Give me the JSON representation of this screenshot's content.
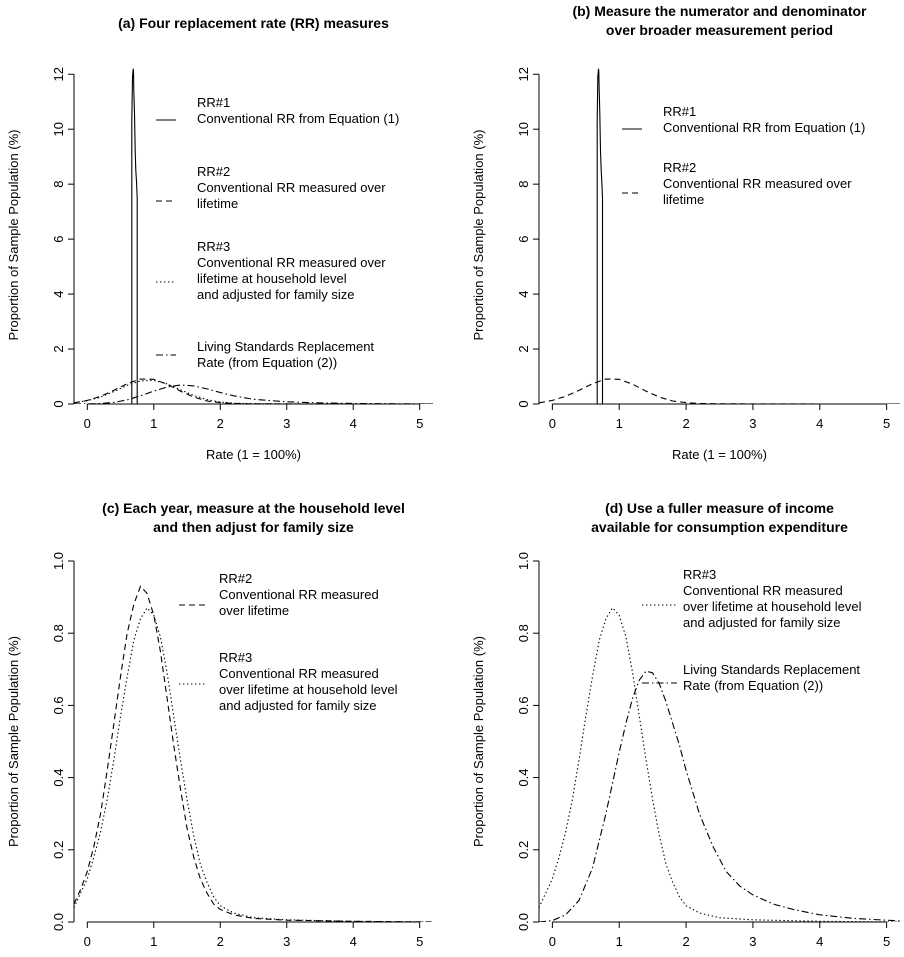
{
  "chart_data": [
    {
      "type": "line",
      "panel": "a",
      "title_lines": [
        "(a) Four replacement rate (RR) measures"
      ],
      "xlabel": "Rate (1 = 100%)",
      "ylabel": "Proportion of Sample Population (%)",
      "xlim": [
        -0.2,
        5.2
      ],
      "ylim": [
        0,
        12.3
      ],
      "xticks": [
        "0",
        "1",
        "2",
        "3",
        "4",
        "5"
      ],
      "yticks": [
        "0",
        "2",
        "4",
        "6",
        "8",
        "10",
        "12"
      ],
      "legend": [
        {
          "lines": [
            "RR#1",
            "Conventional RR from Equation (1)"
          ],
          "style": "solid"
        },
        {
          "lines": [
            "RR#2",
            "Conventional RR measured over",
            "lifetime"
          ],
          "style": "dashed"
        },
        {
          "lines": [
            "RR#3",
            "Conventional RR measured over",
            "lifetime at household level",
            "and adjusted for family size"
          ],
          "style": "dotted"
        },
        {
          "lines": [
            "Living Standards Replacement",
            "Rate (from Equation (2))"
          ],
          "style": "dashdot"
        }
      ],
      "series": [
        {
          "style": "solid",
          "x": [
            0.67,
            0.67,
            0.68,
            0.69,
            0.695,
            0.7,
            0.71,
            0.72,
            0.73,
            0.74,
            0.75,
            0.75,
            5.2
          ],
          "y": [
            0,
            10.3,
            11.9,
            12.2,
            12.1,
            11.4,
            10.6,
            9.2,
            8.5,
            8.1,
            7.5,
            0,
            0
          ]
        },
        {
          "style": "dashed",
          "x": [
            -0.2,
            0,
            0.2,
            0.4,
            0.6,
            0.8,
            1.0,
            1.2,
            1.4,
            1.6,
            1.8,
            2.0,
            2.2,
            2.5,
            3,
            4,
            5.2
          ],
          "y": [
            0.04,
            0.13,
            0.28,
            0.5,
            0.74,
            0.91,
            0.9,
            0.72,
            0.47,
            0.25,
            0.11,
            0.05,
            0.02,
            0.008,
            0.003,
            0.001,
            0
          ]
        },
        {
          "style": "dotted",
          "x": [
            -0.2,
            0,
            0.2,
            0.4,
            0.6,
            0.8,
            1.0,
            1.2,
            1.4,
            1.6,
            1.8,
            2.0,
            2.2,
            2.5,
            3,
            4,
            5.2
          ],
          "y": [
            0.05,
            0.12,
            0.25,
            0.45,
            0.68,
            0.84,
            0.86,
            0.73,
            0.52,
            0.31,
            0.16,
            0.07,
            0.03,
            0.012,
            0.004,
            0.001,
            0
          ]
        },
        {
          "style": "dashdot",
          "x": [
            -0.2,
            0,
            0.2,
            0.4,
            0.6,
            0.8,
            1.0,
            1.2,
            1.4,
            1.6,
            1.8,
            2.0,
            2.2,
            2.5,
            3,
            3.5,
            4,
            4.5,
            5,
            5.2
          ],
          "y": [
            0,
            0.004,
            0.02,
            0.06,
            0.15,
            0.3,
            0.47,
            0.62,
            0.69,
            0.66,
            0.55,
            0.42,
            0.3,
            0.17,
            0.08,
            0.04,
            0.02,
            0.01,
            0.005,
            0.003
          ]
        }
      ]
    },
    {
      "type": "line",
      "panel": "b",
      "title_lines": [
        "(b) Measure the numerator and denominator",
        "over broader measurement period"
      ],
      "xlabel": "Rate (1 = 100%)",
      "ylabel": "Proportion of Sample Population (%)",
      "xlim": [
        -0.2,
        5.2
      ],
      "ylim": [
        0,
        12.3
      ],
      "xticks": [
        "0",
        "1",
        "2",
        "3",
        "4",
        "5"
      ],
      "yticks": [
        "0",
        "2",
        "4",
        "6",
        "8",
        "10",
        "12"
      ],
      "legend": [
        {
          "lines": [
            "RR#1",
            "Conventional RR from Equation (1)"
          ],
          "style": "solid"
        },
        {
          "lines": [
            "RR#2",
            "Conventional RR measured over",
            "lifetime"
          ],
          "style": "dashed"
        }
      ],
      "series": [
        {
          "style": "solid",
          "x": [
            0.67,
            0.67,
            0.68,
            0.69,
            0.695,
            0.7,
            0.71,
            0.72,
            0.73,
            0.74,
            0.75,
            0.75,
            5.2
          ],
          "y": [
            0,
            10.3,
            11.9,
            12.2,
            12.1,
            11.4,
            10.6,
            9.2,
            8.5,
            8.1,
            7.5,
            0,
            0
          ]
        },
        {
          "style": "dashed",
          "x": [
            -0.2,
            0,
            0.2,
            0.4,
            0.6,
            0.8,
            1.0,
            1.2,
            1.4,
            1.6,
            1.8,
            2.0,
            2.2,
            2.5,
            3,
            4,
            5.2
          ],
          "y": [
            0.04,
            0.13,
            0.28,
            0.5,
            0.74,
            0.91,
            0.9,
            0.72,
            0.47,
            0.25,
            0.11,
            0.05,
            0.02,
            0.008,
            0.003,
            0.001,
            0
          ]
        }
      ]
    },
    {
      "type": "line",
      "panel": "c",
      "title_lines": [
        "(c) Each year, measure at the household level",
        "and then adjust for family size"
      ],
      "xlabel": "Rate (1 = 100%)",
      "ylabel": "Proportion of Sample Population (%)",
      "xlim": [
        -0.2,
        5.2
      ],
      "ylim": [
        0,
        1.0
      ],
      "xticks": [
        "0",
        "1",
        "2",
        "3",
        "4",
        "5"
      ],
      "yticks": [
        "0.0",
        "0.2",
        "0.4",
        "0.6",
        "0.8",
        "1.0"
      ],
      "legend": [
        {
          "lines": [
            "RR#2",
            "Conventional RR measured",
            "over lifetime"
          ],
          "style": "dashed"
        },
        {
          "lines": [
            "RR#3",
            "Conventional RR measured",
            "over lifetime at household level",
            "and adjusted for family size"
          ],
          "style": "dotted"
        }
      ],
      "series": [
        {
          "style": "dashed",
          "x": [
            -0.2,
            -0.1,
            0,
            0.1,
            0.2,
            0.3,
            0.4,
            0.5,
            0.6,
            0.7,
            0.8,
            0.9,
            1.0,
            1.1,
            1.2,
            1.3,
            1.4,
            1.5,
            1.6,
            1.7,
            1.8,
            1.9,
            2.0,
            2.2,
            2.5,
            3,
            4,
            5.2
          ],
          "y": [
            0.05,
            0.09,
            0.14,
            0.21,
            0.3,
            0.42,
            0.55,
            0.68,
            0.8,
            0.88,
            0.93,
            0.91,
            0.85,
            0.75,
            0.62,
            0.49,
            0.37,
            0.26,
            0.18,
            0.12,
            0.08,
            0.05,
            0.035,
            0.02,
            0.01,
            0.005,
            0.002,
            0
          ]
        },
        {
          "style": "dotted",
          "x": [
            -0.2,
            -0.1,
            0,
            0.1,
            0.2,
            0.3,
            0.4,
            0.5,
            0.6,
            0.7,
            0.8,
            0.9,
            1.0,
            1.1,
            1.2,
            1.3,
            1.4,
            1.5,
            1.6,
            1.7,
            1.8,
            1.9,
            2.0,
            2.2,
            2.5,
            3,
            4,
            5.2
          ],
          "y": [
            0.04,
            0.08,
            0.12,
            0.18,
            0.25,
            0.34,
            0.45,
            0.57,
            0.68,
            0.78,
            0.84,
            0.87,
            0.85,
            0.79,
            0.69,
            0.57,
            0.45,
            0.34,
            0.24,
            0.16,
            0.11,
            0.07,
            0.045,
            0.025,
            0.012,
            0.006,
            0.002,
            0
          ]
        }
      ]
    },
    {
      "type": "line",
      "panel": "d",
      "title_lines": [
        "(d) Use a fuller measure of income",
        "available for consumption expenditure"
      ],
      "xlabel": "Rate (1 = 100%)",
      "ylabel": "Proportion of Sample Population (%)",
      "xlim": [
        -0.2,
        5.2
      ],
      "ylim": [
        0,
        1.0
      ],
      "xticks": [
        "0",
        "1",
        "2",
        "3",
        "4",
        "5"
      ],
      "yticks": [
        "0.0",
        "0.2",
        "0.4",
        "0.6",
        "0.8",
        "1.0"
      ],
      "legend": [
        {
          "lines": [
            "RR#3",
            "Conventional RR measured",
            "over lifetime at household level",
            "and adjusted for family size"
          ],
          "style": "dotted"
        },
        {
          "lines": [
            "Living Standards Replacement",
            "Rate (from Equation (2))"
          ],
          "style": "dashdot"
        }
      ],
      "series": [
        {
          "style": "dotted",
          "x": [
            -0.2,
            -0.1,
            0,
            0.1,
            0.2,
            0.3,
            0.4,
            0.5,
            0.6,
            0.7,
            0.8,
            0.9,
            1.0,
            1.1,
            1.2,
            1.3,
            1.4,
            1.5,
            1.6,
            1.7,
            1.8,
            1.9,
            2.0,
            2.2,
            2.5,
            3,
            4,
            5.2
          ],
          "y": [
            0.04,
            0.08,
            0.12,
            0.18,
            0.25,
            0.34,
            0.45,
            0.57,
            0.68,
            0.78,
            0.84,
            0.87,
            0.85,
            0.79,
            0.69,
            0.57,
            0.45,
            0.34,
            0.24,
            0.16,
            0.11,
            0.07,
            0.045,
            0.025,
            0.012,
            0.006,
            0.002,
            0
          ]
        },
        {
          "style": "dashdot",
          "x": [
            -0.2,
            0,
            0.2,
            0.4,
            0.6,
            0.8,
            1.0,
            1.1,
            1.2,
            1.3,
            1.4,
            1.5,
            1.6,
            1.7,
            1.8,
            1.9,
            2.0,
            2.2,
            2.4,
            2.6,
            2.8,
            3.0,
            3.3,
            3.6,
            4.0,
            4.5,
            5.0,
            5.2
          ],
          "y": [
            0.0,
            0.004,
            0.02,
            0.06,
            0.15,
            0.3,
            0.47,
            0.55,
            0.62,
            0.67,
            0.695,
            0.69,
            0.66,
            0.61,
            0.55,
            0.49,
            0.42,
            0.3,
            0.21,
            0.14,
            0.1,
            0.075,
            0.05,
            0.035,
            0.02,
            0.01,
            0.005,
            0.003
          ]
        }
      ]
    }
  ]
}
